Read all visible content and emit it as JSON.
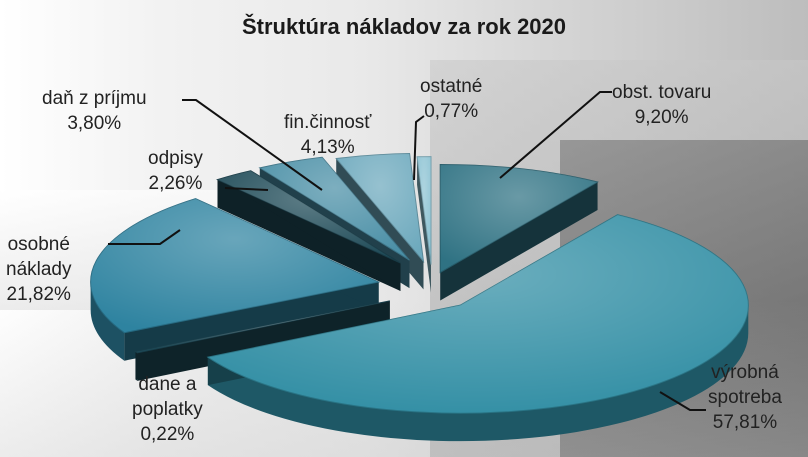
{
  "chart_data": {
    "type": "pie",
    "title": "Štruktúra nákladov za rok 2020",
    "three_d": true,
    "exploded": true,
    "slices": [
      {
        "label": "obst. tovaru",
        "value": 9.2,
        "value_text": "9,20%",
        "color": "#2f7283"
      },
      {
        "label": "výrobná spotreba",
        "value": 57.81,
        "value_text": "57,81%",
        "color": "#318ea4"
      },
      {
        "label": "dane a poplatky",
        "value": 0.22,
        "value_text": "0,22%",
        "color": "#1f4e5c"
      },
      {
        "label": "osobné náklady",
        "value": 21.82,
        "value_text": "21,82%",
        "color": "#2e83a0"
      },
      {
        "label": "odpisy",
        "value": 2.26,
        "value_text": "2,26%",
        "color": "#1e4a57"
      },
      {
        "label": "daň z príjmu",
        "value": 3.8,
        "value_text": "3,80%",
        "color": "#4a8fa6"
      },
      {
        "label": "fin.činnosť",
        "value": 4.13,
        "value_text": "4,13%",
        "color": "#6da9bd"
      },
      {
        "label": "ostatné",
        "value": 0.77,
        "value_text": "0,77%",
        "color": "#8dc3d3"
      }
    ],
    "label_lines": {
      "obst_tovaru": [
        "obst. tovaru",
        "9,20%"
      ],
      "vyrobna_spotreba": [
        "výrobná",
        "spotreba",
        "57,81%"
      ],
      "dane_a_poplatky": [
        "dane a",
        "poplatky",
        "0,22%"
      ],
      "osobne_naklady": [
        "osobné",
        "náklady",
        "21,82%"
      ],
      "odpisy": [
        "odpisy",
        "2,26%"
      ],
      "dan_z_prijmu": [
        "daň z príjmu",
        "3,80%"
      ],
      "fin_cinnost": [
        "fin.činnosť",
        "4,13%"
      ],
      "ostatne": [
        "ostatné",
        "0,77%"
      ]
    }
  }
}
